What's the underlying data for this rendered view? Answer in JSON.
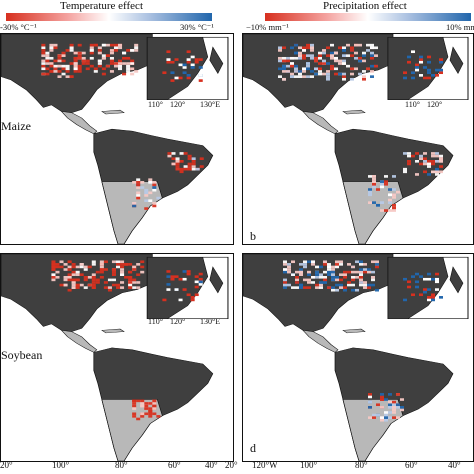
{
  "colorbars": {
    "temperature": {
      "title": "Temperature effect",
      "min_label": "-30% °C⁻¹",
      "max_label": "30% °C⁻¹",
      "colors": [
        "#d7301f",
        "#ffffff",
        "#2166ac"
      ]
    },
    "precipitation": {
      "title": "Precipitation effect",
      "min_label": "−10% mm⁻¹",
      "max_label": "10% mm⁻¹",
      "colors": [
        "#d7301f",
        "#ffffff",
        "#2166ac"
      ]
    }
  },
  "panels": {
    "a": {
      "crop_label": "Maize",
      "letter": ""
    },
    "b": {
      "crop_label": "",
      "letter": "b"
    },
    "c": {
      "crop_label": "Soybean",
      "letter": ""
    },
    "d": {
      "crop_label": "",
      "letter": "d"
    }
  },
  "inset_ticks": [
    "110°",
    "120°",
    "130°E"
  ],
  "x_ticks_left": [
    "20°",
    "100°",
    "80°",
    "60°",
    "40°",
    "20°"
  ],
  "x_ticks_right": [
    "120°W",
    "100°",
    "80°",
    "60°",
    "40°"
  ],
  "colors": {
    "land": "#3f3f3f",
    "southern_land": "#b8b8b8",
    "ocean": "#ffffff",
    "warm": "#d7301f",
    "cool": "#2166ac"
  }
}
